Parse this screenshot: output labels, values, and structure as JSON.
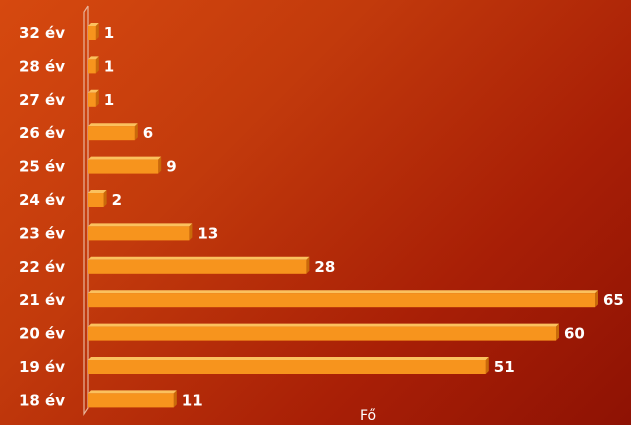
{
  "chart_data": {
    "type": "bar",
    "orientation": "horizontal",
    "categories": [
      "32 év",
      "28 év",
      "27 év",
      "26 év",
      "25 év",
      "24 év",
      "23 év",
      "22 év",
      "21 év",
      "20 év",
      "19 év",
      "18 év"
    ],
    "values": [
      1,
      1,
      1,
      6,
      9,
      2,
      13,
      28,
      65,
      60,
      51,
      11
    ],
    "title": "",
    "xlabel": "Fő",
    "ylabel": "",
    "xlim": [
      0,
      65
    ],
    "grid": false,
    "legend": "none",
    "colors": {
      "bar_front": "#f7941d",
      "bar_top": "#fbc15e",
      "bar_side": "#c96a0a",
      "axis_wall": "#e8b49a",
      "text": "#ffffff"
    }
  }
}
